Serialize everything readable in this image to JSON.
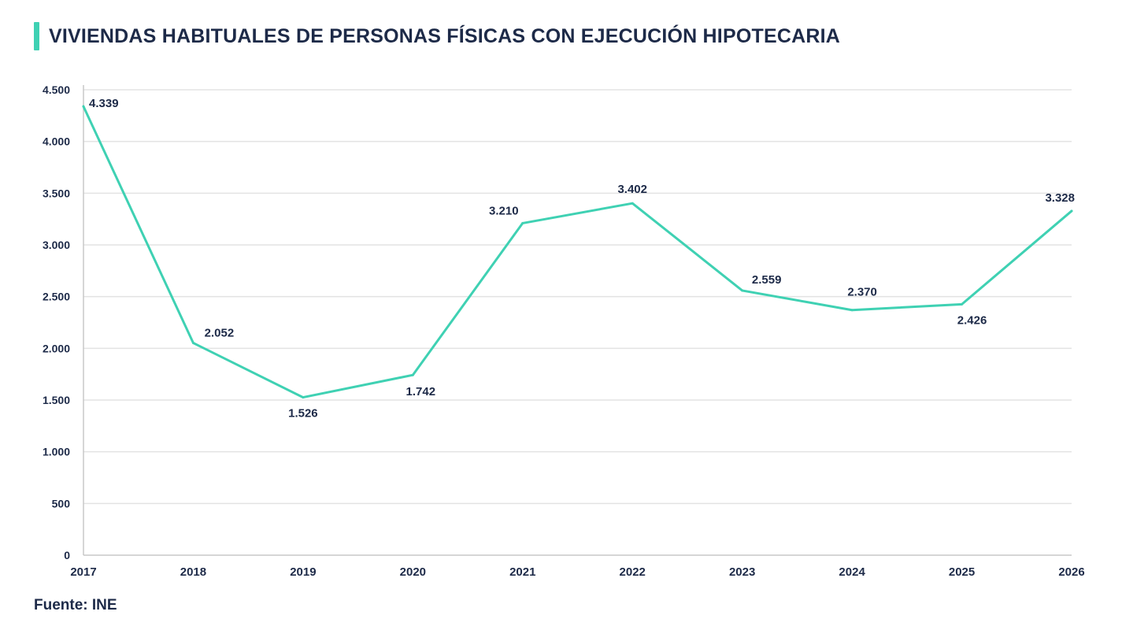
{
  "title": "VIVIENDAS HABITUALES DE PERSONAS FÍSICAS CON EJECUCIÓN HIPOTECARIA",
  "source": "Fuente: INE",
  "colors": {
    "accent": "#3fd1b3",
    "text": "#1d2a48",
    "grid": "#e3e3e3"
  },
  "chart_data": {
    "type": "line",
    "title": "VIVIENDAS HABITUALES DE PERSONAS FÍSICAS CON EJECUCIÓN HIPOTECARIA",
    "xlabel": "",
    "ylabel": "",
    "x": [
      "2017",
      "2018",
      "2019",
      "2020",
      "2021",
      "2022",
      "2023",
      "2024",
      "2025",
      "2026"
    ],
    "series": [
      {
        "values": [
          4339,
          2052,
          1526,
          1742,
          3210,
          3402,
          2559,
          2370,
          2426,
          3328
        ],
        "labels": [
          "4.339",
          "2.052",
          "1.526",
          "1.742",
          "3.210",
          "3.402",
          "2.559",
          "2.370",
          "2.426",
          "3.328"
        ],
        "color": "#3fd1b3"
      }
    ],
    "ylim": [
      0,
      4500
    ],
    "yticks": [
      0,
      500,
      1000,
      1500,
      2000,
      2500,
      3000,
      3500,
      4000,
      4500
    ],
    "ytick_labels": [
      "0",
      "500",
      "1.000",
      "1.500",
      "2.000",
      "2.500",
      "3.000",
      "3.500",
      "4.000",
      "4.500"
    ],
    "grid": true,
    "legend": "none"
  }
}
